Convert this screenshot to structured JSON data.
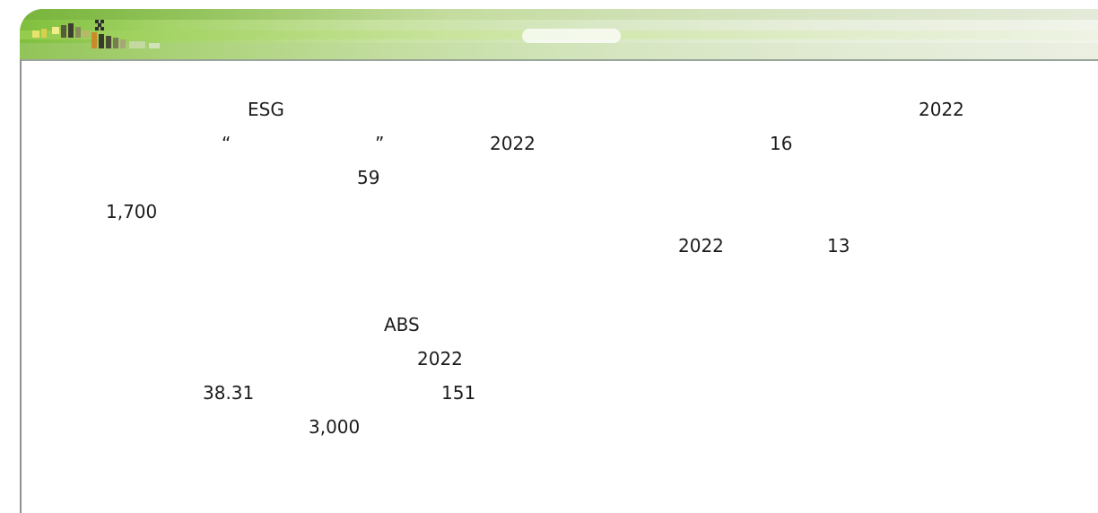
{
  "header": {
    "logo_icon": "brand-logo-icon",
    "band_colors": [
      "#7fbf3c",
      "#a6d46a",
      "#c8e2a2",
      "#e7eedb"
    ]
  },
  "text_fragments": [
    "ESG",
    "2022",
    "“",
    "”",
    "2022",
    "16",
    "59",
    "1,700",
    "2022",
    "13",
    "ABS",
    "2022",
    "38.31",
    "151",
    "3,000"
  ]
}
